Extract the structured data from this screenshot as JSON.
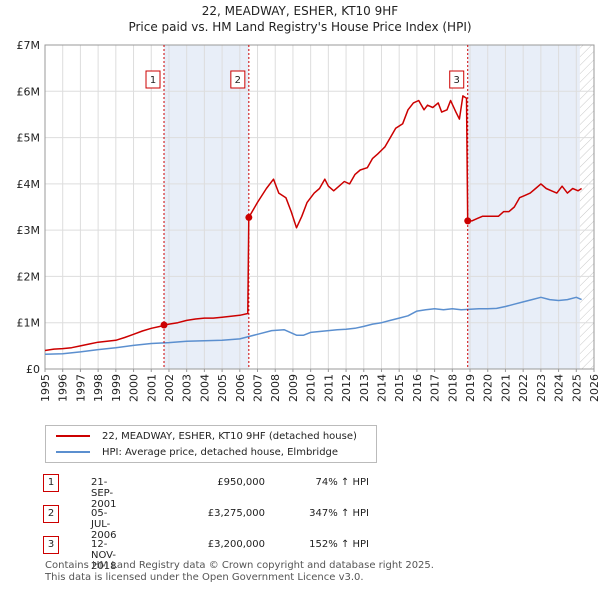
{
  "title": {
    "line1": "22, MEADWAY, ESHER, KT10 9HF",
    "line2": "Price paid vs. HM Land Registry's House Price Index (HPI)"
  },
  "chart_data": {
    "type": "line",
    "xlim": [
      1995,
      2026
    ],
    "ylim": [
      0,
      7000000
    ],
    "x_ticks": [
      1995,
      1996,
      1997,
      1998,
      1999,
      2000,
      2001,
      2002,
      2003,
      2004,
      2005,
      2006,
      2007,
      2008,
      2009,
      2010,
      2011,
      2012,
      2013,
      2014,
      2015,
      2016,
      2017,
      2018,
      2019,
      2020,
      2021,
      2022,
      2023,
      2024,
      2025,
      2026
    ],
    "y_ticks": [
      {
        "value": 0,
        "label": "£0"
      },
      {
        "value": 1000000,
        "label": "£1M"
      },
      {
        "value": 2000000,
        "label": "£2M"
      },
      {
        "value": 3000000,
        "label": "£3M"
      },
      {
        "value": 4000000,
        "label": "£4M"
      },
      {
        "value": 5000000,
        "label": "£5M"
      },
      {
        "value": 6000000,
        "label": "£6M"
      },
      {
        "value": 7000000,
        "label": "£7M"
      }
    ],
    "grid": true,
    "shaded_periods": [
      [
        2001.72,
        2006.51
      ],
      [
        2018.87,
        2025.2
      ]
    ],
    "hatched_after": 2025.2,
    "series": [
      {
        "name": "22, MEADWAY, ESHER, KT10 9HF (detached house)",
        "color": "#cc0000",
        "x": [
          1995.0,
          1995.5,
          1996.0,
          1996.5,
          1997.0,
          1997.5,
          1998.0,
          1998.5,
          1999.0,
          1999.5,
          2000.0,
          2000.5,
          2001.0,
          2001.5,
          2001.72,
          2002.0,
          2002.5,
          2003.0,
          2003.5,
          2004.0,
          2004.5,
          2005.0,
          2005.5,
          2006.0,
          2006.45,
          2006.51,
          2007.0,
          2007.5,
          2007.9,
          2008.2,
          2008.6,
          2008.9,
          2009.2,
          2009.5,
          2009.8,
          2010.2,
          2010.5,
          2010.8,
          2011.0,
          2011.3,
          2011.6,
          2011.9,
          2012.2,
          2012.5,
          2012.8,
          2013.2,
          2013.5,
          2013.8,
          2014.2,
          2014.5,
          2014.8,
          2015.2,
          2015.5,
          2015.8,
          2016.1,
          2016.4,
          2016.6,
          2016.9,
          2017.2,
          2017.4,
          2017.7,
          2017.9,
          2018.2,
          2018.4,
          2018.6,
          2018.8,
          2018.87,
          2019.1,
          2019.4,
          2019.7,
          2020.0,
          2020.3,
          2020.6,
          2020.9,
          2021.2,
          2021.5,
          2021.8,
          2022.1,
          2022.4,
          2022.7,
          2023.0,
          2023.3,
          2023.6,
          2023.9,
          2024.2,
          2024.5,
          2024.8,
          2025.1,
          2025.3
        ],
        "values": [
          400000,
          430000,
          440000,
          460000,
          500000,
          540000,
          580000,
          600000,
          620000,
          680000,
          750000,
          820000,
          880000,
          920000,
          950000,
          970000,
          1000000,
          1050000,
          1080000,
          1100000,
          1100000,
          1120000,
          1140000,
          1160000,
          1200000,
          3275000,
          3600000,
          3900000,
          4100000,
          3800000,
          3700000,
          3400000,
          3050000,
          3300000,
          3600000,
          3800000,
          3900000,
          4100000,
          3950000,
          3850000,
          3950000,
          4050000,
          4000000,
          4200000,
          4300000,
          4350000,
          4550000,
          4650000,
          4800000,
          5000000,
          5200000,
          5300000,
          5600000,
          5750000,
          5800000,
          5600000,
          5700000,
          5650000,
          5750000,
          5550000,
          5600000,
          5800000,
          5550000,
          5400000,
          5900000,
          5850000,
          3200000,
          3200000,
          3250000,
          3300000,
          3300000,
          3300000,
          3300000,
          3400000,
          3400000,
          3500000,
          3700000,
          3750000,
          3800000,
          3900000,
          4000000,
          3900000,
          3850000,
          3800000,
          3950000,
          3800000,
          3900000,
          3850000,
          3900000
        ]
      },
      {
        "name": "HPI: Average price, detached house, Elmbridge",
        "color": "#5b8fcf",
        "x": [
          1995.0,
          1996.0,
          1997.0,
          1998.0,
          1999.0,
          2000.0,
          2001.0,
          2002.0,
          2003.0,
          2004.0,
          2005.0,
          2006.0,
          2007.0,
          2007.8,
          2008.5,
          2009.2,
          2009.6,
          2010.0,
          2010.5,
          2011.0,
          2011.5,
          2012.0,
          2012.5,
          2013.0,
          2013.5,
          2014.0,
          2014.5,
          2015.0,
          2015.5,
          2016.0,
          2016.5,
          2017.0,
          2017.5,
          2018.0,
          2018.5,
          2019.0,
          2019.5,
          2020.0,
          2020.5,
          2021.0,
          2021.5,
          2022.0,
          2022.5,
          2023.0,
          2023.5,
          2024.0,
          2024.5,
          2025.0,
          2025.3
        ],
        "values": [
          320000,
          330000,
          370000,
          420000,
          460000,
          510000,
          550000,
          570000,
          600000,
          610000,
          620000,
          650000,
          750000,
          830000,
          850000,
          730000,
          730000,
          790000,
          810000,
          830000,
          850000,
          860000,
          880000,
          920000,
          970000,
          1000000,
          1050000,
          1100000,
          1150000,
          1250000,
          1280000,
          1300000,
          1280000,
          1300000,
          1280000,
          1290000,
          1300000,
          1300000,
          1310000,
          1350000,
          1400000,
          1450000,
          1500000,
          1550000,
          1500000,
          1480000,
          1500000,
          1550000,
          1500000
        ]
      }
    ],
    "sales": [
      {
        "n": "1",
        "x": 2001.72,
        "price": 950000
      },
      {
        "n": "2",
        "x": 2006.51,
        "price": 3275000
      },
      {
        "n": "3",
        "x": 2018.87,
        "price": 3200000
      }
    ]
  },
  "legend": {
    "property_label": "22, MEADWAY, ESHER, KT10 9HF (detached house)",
    "hpi_label": "HPI: Average price, detached house, Elmbridge"
  },
  "sales_table": [
    {
      "n": "1",
      "date": "21-SEP-2001",
      "price": "£950,000",
      "hpi": "74% ↑ HPI"
    },
    {
      "n": "2",
      "date": "05-JUL-2006",
      "price": "£3,275,000",
      "hpi": "347% ↑ HPI"
    },
    {
      "n": "3",
      "date": "12-NOV-2018",
      "price": "£3,200,000",
      "hpi": "152% ↑ HPI"
    }
  ],
  "footer": {
    "line1": "Contains HM Land Registry data © Crown copyright and database right 2025.",
    "line2": "This data is licensed under the Open Government Licence v3.0."
  },
  "colors": {
    "property": "#cc0000",
    "hpi": "#5b8fcf",
    "shade": "#e8eef8",
    "grid": "#dddddd"
  }
}
